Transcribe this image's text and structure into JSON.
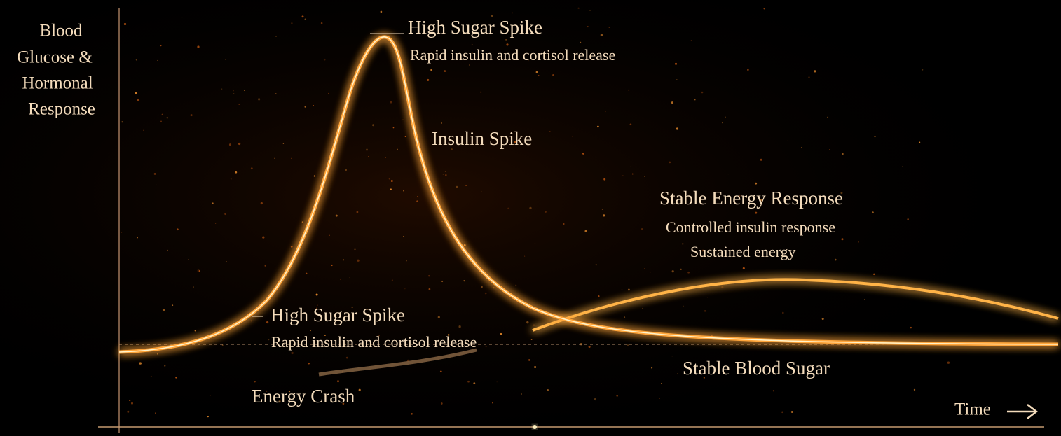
{
  "axis": {
    "y_label": [
      "Blood",
      "Glucose &",
      "Hormonal",
      "Response"
    ],
    "x_label": "Time"
  },
  "annotations": {
    "peak": {
      "title": "High Sugar Spike",
      "subtitle": "Rapid insulin and cortisol release"
    },
    "insulin": {
      "title": "Insulin Spike"
    },
    "stable_energy": {
      "title": "Stable Energy Response",
      "lines": [
        "Controlled insulin response",
        "Sustained energy"
      ]
    },
    "rise": {
      "title": "High Sugar Spike",
      "subtitle": "Rapid insulin and cortisol release"
    },
    "crash": {
      "title": "Energy Crash"
    },
    "stable_sugar": {
      "title": "Stable Blood Sugar"
    }
  }
}
